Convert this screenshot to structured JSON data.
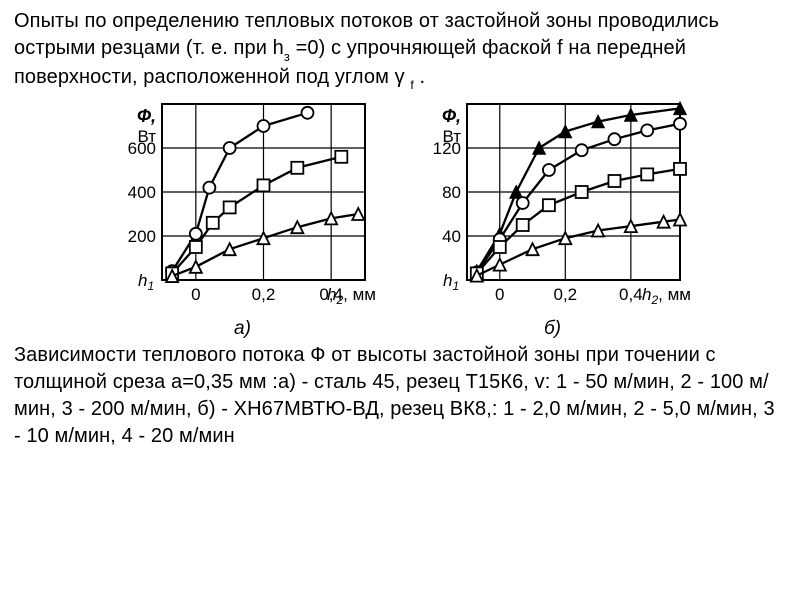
{
  "text": {
    "top_plain": "Опыты по определению тепловых потоков от застойной зоны проводились острыми резцами (т. е. при h",
    "top_sub1": "з",
    "top_after_sub1": " =0) с упрочняющей фаской f на передней  поверхности,  расположенной под углом γ ",
    "top_sub2": "f",
    "top_tail": " .",
    "bottom": "Зависимости теплового потока Ф от высоты застойной зоны при точении с толщиной среза а=0,35 мм :а) - сталь 45, резец Т15К6, v: 1 - 50 м/мин, 2 - 100 м/мин, 3 - 200 м/мин, б) - ХН67МВТЮ-ВД, резец ВК8,: 1 - 2,0  м/мин,  2 - 5,0   м/мин, 3 - 10  м/мин, 4 - 20   м/мин"
  },
  "chartA": {
    "caption": "а)",
    "ylabel_top": "Ф,",
    "ylabel_bot": "Вт",
    "yticks": [
      200,
      400,
      600
    ],
    "ylim": [
      0,
      800
    ],
    "xlabel_h1": "h",
    "xlabel_h1_sub": "1",
    "xlabel_right": "h",
    "xlabel_right_sub": "2",
    "xlabel_unit": ", мм",
    "xticks": [
      0,
      0.2,
      0.4
    ],
    "xtick_labels": [
      "0",
      "0,2",
      "0,4"
    ],
    "xlim": [
      -0.1,
      0.5
    ],
    "colors": {
      "stroke": "#000000",
      "bg": "#ffffff"
    },
    "series": [
      {
        "marker": "circle",
        "pts": [
          [
            -0.07,
            40
          ],
          [
            0,
            210
          ],
          [
            0.04,
            420
          ],
          [
            0.1,
            600
          ],
          [
            0.2,
            700
          ],
          [
            0.33,
            760
          ]
        ]
      },
      {
        "marker": "square",
        "pts": [
          [
            -0.07,
            30
          ],
          [
            0,
            150
          ],
          [
            0.05,
            260
          ],
          [
            0.1,
            330
          ],
          [
            0.2,
            430
          ],
          [
            0.3,
            510
          ],
          [
            0.43,
            560
          ]
        ]
      },
      {
        "marker": "triangle",
        "pts": [
          [
            -0.07,
            18
          ],
          [
            0,
            60
          ],
          [
            0.1,
            140
          ],
          [
            0.2,
            190
          ],
          [
            0.3,
            240
          ],
          [
            0.4,
            280
          ],
          [
            0.48,
            300
          ]
        ]
      }
    ],
    "line_width": 2.3,
    "marker_size": 6
  },
  "chartB": {
    "caption": "б)",
    "ylabel_top": "Ф,",
    "ylabel_bot": "Вт",
    "yticks": [
      40,
      80,
      120
    ],
    "ylim": [
      0,
      160
    ],
    "xlabel_h1": "h",
    "xlabel_h1_sub": "1",
    "xlabel_right": "h",
    "xlabel_right_sub": "2",
    "xlabel_unit": ", мм",
    "xticks": [
      0,
      0.2,
      0.4
    ],
    "xtick_labels": [
      "0",
      "0,2",
      "0,4"
    ],
    "xlim": [
      -0.1,
      0.55
    ],
    "colors": {
      "stroke": "#000000",
      "bg": "#ffffff"
    },
    "series": [
      {
        "marker": "filled-triangle",
        "pts": [
          [
            -0.07,
            8
          ],
          [
            0,
            42
          ],
          [
            0.05,
            80
          ],
          [
            0.12,
            120
          ],
          [
            0.2,
            135
          ],
          [
            0.3,
            144
          ],
          [
            0.4,
            150
          ],
          [
            0.55,
            156
          ]
        ]
      },
      {
        "marker": "circle",
        "pts": [
          [
            -0.07,
            7
          ],
          [
            0,
            37
          ],
          [
            0.07,
            70
          ],
          [
            0.15,
            100
          ],
          [
            0.25,
            118
          ],
          [
            0.35,
            128
          ],
          [
            0.45,
            136
          ],
          [
            0.55,
            142
          ]
        ]
      },
      {
        "marker": "square",
        "pts": [
          [
            -0.07,
            6
          ],
          [
            0,
            30
          ],
          [
            0.07,
            50
          ],
          [
            0.15,
            68
          ],
          [
            0.25,
            80
          ],
          [
            0.35,
            90
          ],
          [
            0.45,
            96
          ],
          [
            0.55,
            101
          ]
        ]
      },
      {
        "marker": "triangle",
        "pts": [
          [
            -0.07,
            4
          ],
          [
            0,
            14
          ],
          [
            0.1,
            28
          ],
          [
            0.2,
            38
          ],
          [
            0.3,
            45
          ],
          [
            0.4,
            49
          ],
          [
            0.5,
            53
          ],
          [
            0.55,
            55
          ]
        ]
      }
    ],
    "line_width": 2.3,
    "marker_size": 6
  }
}
